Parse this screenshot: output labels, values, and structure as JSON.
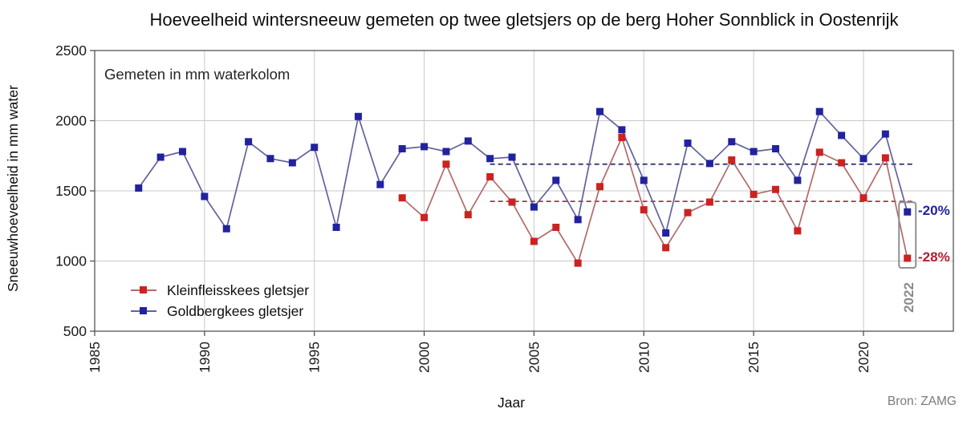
{
  "title": "Hoeveelheid wintersneeuw gemeten op twee gletsjers op de berg Hoher Sonnblick in Oostenrijk",
  "note": "Gemeten in mm waterkolom",
  "source": "Bron: ZAMG",
  "axes": {
    "x_label": "Jaar",
    "y_label": "Sneeuwhoeveelheid in mm water"
  },
  "annotations": {
    "goldbergkees_drop": "-20%",
    "kleinfleisskees_drop": "-28%",
    "highlight_year": "2022"
  },
  "colors": {
    "kleinfleisskees_marker": "#cc2222",
    "kleinfleisskees_line": "#b26a6a",
    "kleinfleisskees_mean": "#a03a48",
    "goldbergkees_marker": "#2222a0",
    "goldbergkees_line": "#62629c",
    "goldbergkees_mean": "#2a2a6e",
    "highlight_box": "#909090",
    "grid": "#c9c9c9",
    "axis": "#555555",
    "tick_text": "#1a1a1a"
  },
  "chart_data": {
    "type": "line",
    "title": "Hoeveelheid wintersneeuw gemeten op twee gletsjers op de berg Hoher Sonnblick in Oostenrijk",
    "xlabel": "Jaar",
    "ylabel": "Sneeuwhoeveelheid in mm water",
    "note": "Gemeten in mm waterkolom",
    "source": "Bron: ZAMG",
    "xlim": [
      1985,
      2024
    ],
    "ylim": [
      500,
      2500
    ],
    "x_ticks": [
      1985,
      1990,
      1995,
      2000,
      2005,
      2010,
      2015,
      2020
    ],
    "y_ticks": [
      500,
      1000,
      1500,
      2000,
      2500
    ],
    "grid": true,
    "legend_position": "lower-left-inside",
    "highlight": {
      "year": 2022,
      "label": "2022"
    },
    "series": [
      {
        "name": "Kleinfleisskees gletsjer",
        "slug": "kleinfleisskees",
        "color_marker": "#cc2222",
        "color_line": "#b26a6a",
        "color_mean": "#a03a48",
        "start_year": 1999,
        "years": [
          1999,
          2000,
          2001,
          2002,
          2003,
          2004,
          2005,
          2006,
          2007,
          2008,
          2009,
          2010,
          2011,
          2012,
          2013,
          2014,
          2015,
          2016,
          2017,
          2018,
          2019,
          2020,
          2021,
          2022
        ],
        "values": [
          1450,
          1310,
          1690,
          1330,
          1600,
          1420,
          1140,
          1240,
          985,
          1530,
          1880,
          1365,
          1095,
          1345,
          1420,
          1720,
          1475,
          1510,
          1215,
          1775,
          1700,
          1450,
          1735,
          1020
        ],
        "mean_line": {
          "value": 1425,
          "from": 2003,
          "to": 2022,
          "style": "dashed",
          "label": "-28%"
        }
      },
      {
        "name": "Goldbergkees gletsjer",
        "slug": "goldbergkees",
        "color_marker": "#2222a0",
        "color_line": "#62629c",
        "color_mean": "#2a2a6e",
        "start_year": 1987,
        "years": [
          1987,
          1988,
          1989,
          1990,
          1991,
          1992,
          1993,
          1994,
          1995,
          1996,
          1997,
          1998,
          1999,
          2000,
          2001,
          2002,
          2003,
          2004,
          2005,
          2006,
          2007,
          2008,
          2009,
          2010,
          2011,
          2012,
          2013,
          2014,
          2015,
          2016,
          2017,
          2018,
          2019,
          2020,
          2021,
          2022
        ],
        "values": [
          1520,
          1740,
          1780,
          1460,
          1230,
          1850,
          1730,
          1700,
          1810,
          1240,
          2030,
          1545,
          1800,
          1815,
          1780,
          1855,
          1730,
          1740,
          1385,
          1575,
          1295,
          2065,
          1935,
          1575,
          1200,
          1840,
          1695,
          1850,
          1780,
          1800,
          1575,
          2065,
          1895,
          1730,
          1905,
          1350
        ],
        "mean_line": {
          "value": 1690,
          "from": 2003,
          "to": 2022,
          "style": "dashed",
          "label": "-20%"
        }
      }
    ]
  }
}
